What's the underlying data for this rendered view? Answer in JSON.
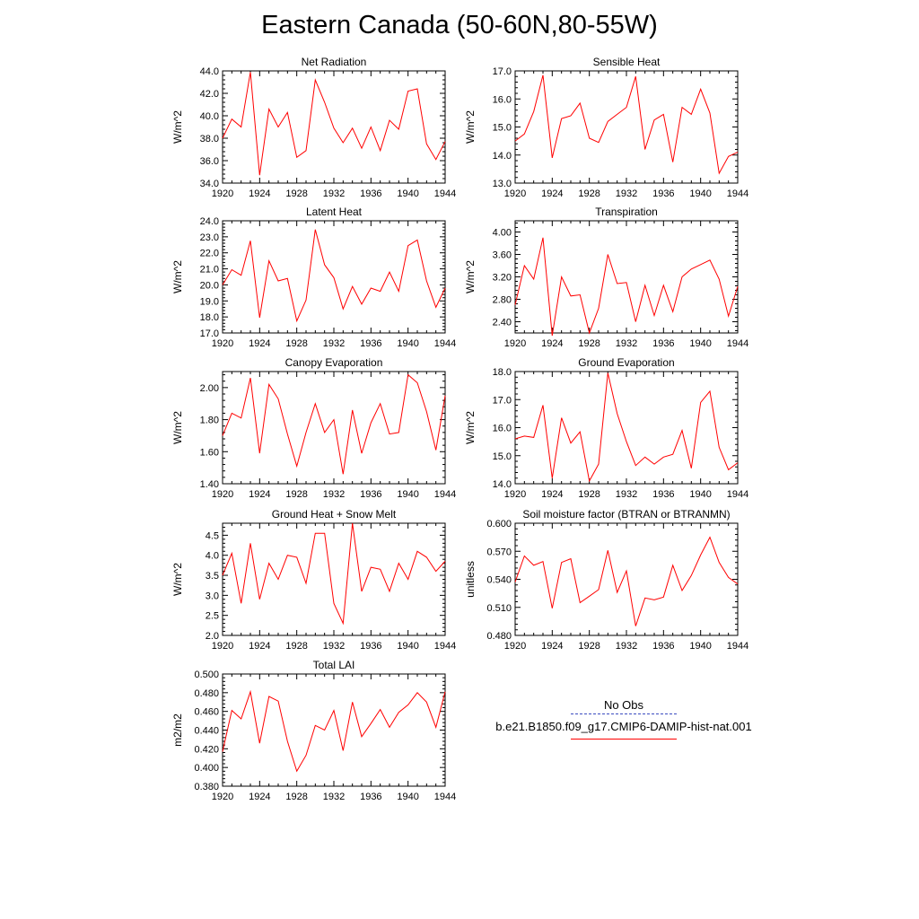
{
  "title": "Eastern Canada (50-60N,80-55W)",
  "legend": {
    "obs_label": "No Obs",
    "model_label": "b.e21.B1850.f09_g17.CMIP6-DAMIP-hist-nat.001",
    "obs_color": "#3b4cc0",
    "model_color": "#ff0000"
  },
  "chart_data": [
    {
      "type": "line",
      "title": "Net Radiation",
      "ylabel": "W/m^2",
      "xlim": [
        1920,
        1944
      ],
      "ylim": [
        34.0,
        44.0
      ],
      "xticks": [
        1920,
        1924,
        1928,
        1932,
        1936,
        1940,
        1944
      ],
      "yticks": [
        34.0,
        36.0,
        38.0,
        40.0,
        42.0,
        44.0
      ],
      "ydecimals": 1,
      "x": [
        1920,
        1921,
        1922,
        1923,
        1924,
        1925,
        1926,
        1927,
        1928,
        1929,
        1930,
        1931,
        1932,
        1933,
        1934,
        1935,
        1936,
        1937,
        1938,
        1939,
        1940,
        1941,
        1942,
        1943,
        1944
      ],
      "series": [
        {
          "values": [
            38.0,
            39.7,
            39.0,
            43.9,
            34.7,
            40.6,
            39.0,
            40.3,
            36.3,
            36.9,
            43.2,
            41.2,
            38.9,
            37.6,
            38.9,
            37.1,
            39.0,
            36.9,
            39.6,
            38.8,
            42.2,
            42.4,
            37.5,
            36.1,
            37.7
          ]
        }
      ]
    },
    {
      "type": "line",
      "title": "Sensible Heat",
      "ylabel": "W/m^2",
      "xlim": [
        1920,
        1944
      ],
      "ylim": [
        13.0,
        17.0
      ],
      "xticks": [
        1920,
        1924,
        1928,
        1932,
        1936,
        1940,
        1944
      ],
      "yticks": [
        13.0,
        14.0,
        15.0,
        16.0,
        17.0
      ],
      "ydecimals": 1,
      "x": [
        1920,
        1921,
        1922,
        1923,
        1924,
        1925,
        1926,
        1927,
        1928,
        1929,
        1930,
        1931,
        1932,
        1933,
        1934,
        1935,
        1936,
        1937,
        1938,
        1939,
        1940,
        1941,
        1942,
        1943,
        1944
      ],
      "series": [
        {
          "values": [
            14.5,
            14.75,
            15.55,
            16.85,
            13.9,
            15.3,
            15.4,
            15.85,
            14.6,
            14.45,
            15.2,
            15.45,
            15.7,
            16.8,
            14.2,
            15.25,
            15.45,
            13.75,
            15.7,
            15.45,
            16.35,
            15.5,
            13.35,
            13.95,
            14.1
          ]
        }
      ]
    },
    {
      "type": "line",
      "title": "Latent Heat",
      "ylabel": "W/m^2",
      "xlim": [
        1920,
        1944
      ],
      "ylim": [
        17.0,
        24.0
      ],
      "xticks": [
        1920,
        1924,
        1928,
        1932,
        1936,
        1940,
        1944
      ],
      "yticks": [
        17.0,
        18.0,
        19.0,
        20.0,
        21.0,
        22.0,
        23.0,
        24.0
      ],
      "ydecimals": 1,
      "x": [
        1920,
        1921,
        1922,
        1923,
        1924,
        1925,
        1926,
        1927,
        1928,
        1929,
        1930,
        1931,
        1932,
        1933,
        1934,
        1935,
        1936,
        1937,
        1938,
        1939,
        1940,
        1941,
        1942,
        1943,
        1944
      ],
      "series": [
        {
          "values": [
            20.0,
            20.95,
            20.6,
            22.75,
            17.95,
            21.5,
            20.25,
            20.4,
            17.75,
            19.05,
            23.45,
            21.25,
            20.45,
            18.5,
            19.9,
            18.8,
            19.8,
            19.6,
            20.8,
            19.6,
            22.45,
            22.8,
            20.25,
            18.6,
            19.8
          ]
        }
      ]
    },
    {
      "type": "line",
      "title": "Transpiration",
      "ylabel": "W/m^2",
      "xlim": [
        1920,
        1944
      ],
      "ylim": [
        2.2,
        4.2
      ],
      "xticks": [
        1920,
        1924,
        1928,
        1932,
        1936,
        1940,
        1944
      ],
      "yticks": [
        2.4,
        2.8,
        3.2,
        3.6,
        4.0
      ],
      "ydecimals": 2,
      "x": [
        1920,
        1921,
        1922,
        1923,
        1924,
        1925,
        1926,
        1927,
        1928,
        1929,
        1930,
        1931,
        1932,
        1933,
        1934,
        1935,
        1936,
        1937,
        1938,
        1939,
        1940,
        1941,
        1942,
        1943,
        1944
      ],
      "series": [
        {
          "values": [
            2.7,
            3.4,
            3.16,
            3.9,
            2.15,
            3.2,
            2.86,
            2.88,
            2.2,
            2.64,
            3.6,
            3.08,
            3.1,
            2.4,
            3.05,
            2.51,
            3.05,
            2.58,
            3.2,
            3.34,
            3.42,
            3.5,
            3.16,
            2.5,
            3.03
          ]
        }
      ]
    },
    {
      "type": "line",
      "title": "Canopy Evaporation",
      "ylabel": "W/m^2",
      "xlim": [
        1920,
        1944
      ],
      "ylim": [
        1.4,
        2.1
      ],
      "xticks": [
        1920,
        1924,
        1928,
        1932,
        1936,
        1940,
        1944
      ],
      "yticks": [
        1.4,
        1.6,
        1.8,
        2.0
      ],
      "ydecimals": 2,
      "x": [
        1920,
        1921,
        1922,
        1923,
        1924,
        1925,
        1926,
        1927,
        1928,
        1929,
        1930,
        1931,
        1932,
        1933,
        1934,
        1935,
        1936,
        1937,
        1938,
        1939,
        1940,
        1941,
        1942,
        1943,
        1944
      ],
      "series": [
        {
          "values": [
            1.7,
            1.84,
            1.81,
            2.06,
            1.59,
            2.02,
            1.93,
            1.71,
            1.51,
            1.72,
            1.9,
            1.72,
            1.8,
            1.46,
            1.86,
            1.59,
            1.78,
            1.9,
            1.71,
            1.72,
            2.08,
            2.03,
            1.85,
            1.61,
            1.95
          ]
        }
      ]
    },
    {
      "type": "line",
      "title": "Ground Evaporation",
      "ylabel": "W/m^2",
      "xlim": [
        1920,
        1944
      ],
      "ylim": [
        14.0,
        18.0
      ],
      "xticks": [
        1920,
        1924,
        1928,
        1932,
        1936,
        1940,
        1944
      ],
      "yticks": [
        14.0,
        15.0,
        16.0,
        17.0,
        18.0
      ],
      "ydecimals": 1,
      "x": [
        1920,
        1921,
        1922,
        1923,
        1924,
        1925,
        1926,
        1927,
        1928,
        1929,
        1930,
        1931,
        1932,
        1933,
        1934,
        1935,
        1936,
        1937,
        1938,
        1939,
        1940,
        1941,
        1942,
        1943,
        1944
      ],
      "series": [
        {
          "values": [
            15.6,
            15.7,
            15.65,
            16.8,
            14.2,
            16.35,
            15.45,
            15.85,
            14.1,
            14.7,
            17.95,
            16.5,
            15.5,
            14.65,
            14.95,
            14.7,
            14.95,
            15.05,
            15.9,
            14.55,
            16.9,
            17.3,
            15.3,
            14.5,
            14.75
          ]
        }
      ]
    },
    {
      "type": "line",
      "title": "Ground Heat + Snow Melt",
      "ylabel": "W/m^2",
      "xlim": [
        1920,
        1944
      ],
      "ylim": [
        2.0,
        4.8
      ],
      "xticks": [
        1920,
        1924,
        1928,
        1932,
        1936,
        1940,
        1944
      ],
      "yticks": [
        2.0,
        2.5,
        3.0,
        3.5,
        4.0,
        4.5
      ],
      "ydecimals": 1,
      "x": [
        1920,
        1921,
        1922,
        1923,
        1924,
        1925,
        1926,
        1927,
        1928,
        1929,
        1930,
        1931,
        1932,
        1933,
        1934,
        1935,
        1936,
        1937,
        1938,
        1939,
        1940,
        1941,
        1942,
        1943,
        1944
      ],
      "series": [
        {
          "values": [
            3.5,
            4.05,
            2.8,
            4.3,
            2.9,
            3.8,
            3.4,
            4.0,
            3.95,
            3.3,
            4.55,
            4.55,
            2.8,
            2.3,
            4.8,
            3.1,
            3.7,
            3.65,
            3.1,
            3.8,
            3.4,
            4.1,
            3.95,
            3.6,
            3.85
          ]
        }
      ]
    },
    {
      "type": "line",
      "title": "Soil moisture factor (BTRAN or BTRANMN)",
      "ylabel": "unitless",
      "xlim": [
        1920,
        1944
      ],
      "ylim": [
        0.48,
        0.6
      ],
      "xticks": [
        1920,
        1924,
        1928,
        1932,
        1936,
        1940,
        1944
      ],
      "yticks": [
        0.48,
        0.51,
        0.54,
        0.57,
        0.6
      ],
      "ydecimals": 3,
      "x": [
        1920,
        1921,
        1922,
        1923,
        1924,
        1925,
        1926,
        1927,
        1928,
        1929,
        1930,
        1931,
        1932,
        1933,
        1934,
        1935,
        1936,
        1937,
        1938,
        1939,
        1940,
        1941,
        1942,
        1943,
        1944
      ],
      "series": [
        {
          "values": [
            0.537,
            0.565,
            0.555,
            0.559,
            0.509,
            0.558,
            0.562,
            0.515,
            0.522,
            0.529,
            0.571,
            0.526,
            0.549,
            0.49,
            0.52,
            0.518,
            0.521,
            0.555,
            0.528,
            0.544,
            0.566,
            0.585,
            0.558,
            0.542,
            0.535
          ]
        }
      ]
    },
    {
      "type": "line",
      "title": "Total LAI",
      "ylabel": "m2/m2",
      "xlim": [
        1920,
        1944
      ],
      "ylim": [
        0.38,
        0.5
      ],
      "xticks": [
        1920,
        1924,
        1928,
        1932,
        1936,
        1940,
        1944
      ],
      "yticks": [
        0.38,
        0.4,
        0.42,
        0.44,
        0.46,
        0.48,
        0.5
      ],
      "ydecimals": 3,
      "x": [
        1920,
        1921,
        1922,
        1923,
        1924,
        1925,
        1926,
        1927,
        1928,
        1929,
        1930,
        1931,
        1932,
        1933,
        1934,
        1935,
        1936,
        1937,
        1938,
        1939,
        1940,
        1941,
        1942,
        1943,
        1944
      ],
      "series": [
        {
          "values": [
            0.417,
            0.461,
            0.452,
            0.481,
            0.426,
            0.476,
            0.471,
            0.428,
            0.396,
            0.413,
            0.445,
            0.44,
            0.461,
            0.418,
            0.47,
            0.433,
            0.447,
            0.462,
            0.443,
            0.459,
            0.467,
            0.48,
            0.47,
            0.443,
            0.481
          ]
        }
      ]
    }
  ]
}
